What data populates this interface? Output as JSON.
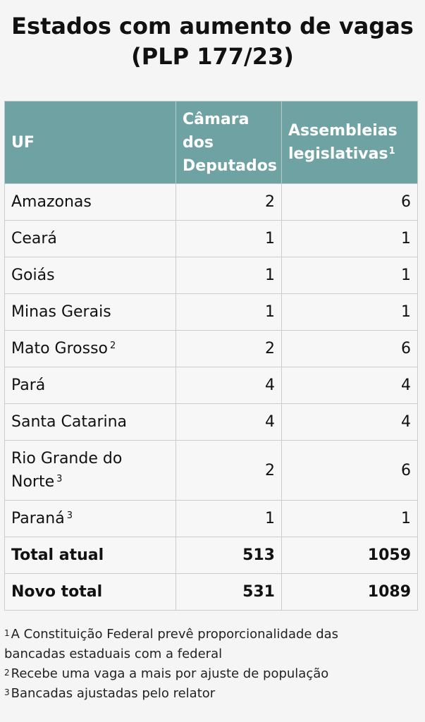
{
  "title": {
    "line1": "Estados com aumento de vagas",
    "line2": "(PLP 177/23)"
  },
  "table": {
    "headers": {
      "uf": "UF",
      "camara": "Câmara dos Deputados",
      "assembleias": "Assembleias legislativas",
      "assembleias_sup": "1"
    },
    "rows": [
      {
        "uf": "Amazonas",
        "sup": "",
        "camara": "2",
        "assembleias": "6"
      },
      {
        "uf": "Ceará",
        "sup": "",
        "camara": "1",
        "assembleias": "1"
      },
      {
        "uf": "Goiás",
        "sup": "",
        "camara": "1",
        "assembleias": "1"
      },
      {
        "uf": "Minas Gerais",
        "sup": "",
        "camara": "1",
        "assembleias": "1"
      },
      {
        "uf": "Mato Grosso",
        "sup": "2",
        "camara": "2",
        "assembleias": "6"
      },
      {
        "uf": "Pará",
        "sup": "",
        "camara": "4",
        "assembleias": "4"
      },
      {
        "uf": "Santa Catarina",
        "sup": "",
        "camara": "4",
        "assembleias": "4"
      },
      {
        "uf": "Rio Grande do Norte",
        "sup": "3",
        "camara": "2",
        "assembleias": "6"
      },
      {
        "uf": "Paraná",
        "sup": "3",
        "camara": "1",
        "assembleias": "1"
      }
    ],
    "totals": [
      {
        "label": "Total atual",
        "camara": "513",
        "assembleias": "1059"
      },
      {
        "label": "Novo total",
        "camara": "531",
        "assembleias": "1089"
      }
    ]
  },
  "notes": [
    {
      "mark": "1",
      "text": "A Constituição Federal prevê proporcionalidade das bancadas estaduais com a federal"
    },
    {
      "mark": "2",
      "text": "Recebe uma vaga a mais por ajuste de população"
    },
    {
      "mark": "3",
      "text": "Bancadas ajustadas pelo relator"
    }
  ],
  "colors": {
    "header_bg": "#6fa3a3",
    "header_text": "#ffffff",
    "page_bg": "#f5f5f5"
  }
}
